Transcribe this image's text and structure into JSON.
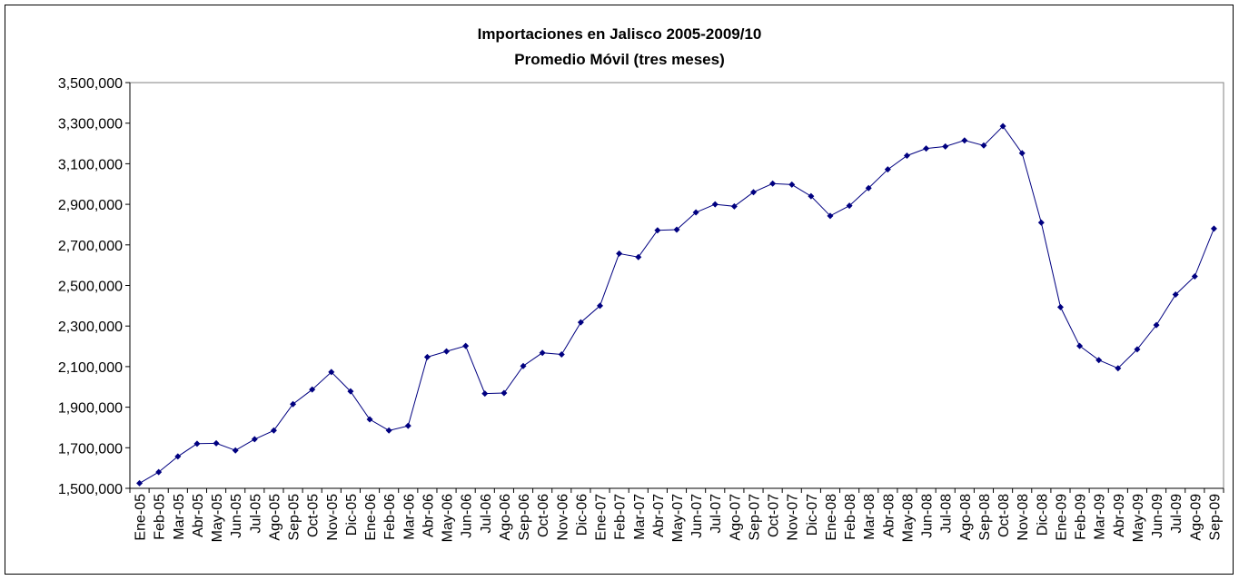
{
  "chart_data": {
    "type": "line",
    "title": "Importaciones en Jalisco 2005-2009/10",
    "subtitle": "Promedio Móvil (tres meses)",
    "categories": [
      "Ene-05",
      "Feb-05",
      "Mar-05",
      "Abr-05",
      "May-05",
      "Jun-05",
      "Jul-05",
      "Ago-05",
      "Sep-05",
      "Oct-05",
      "Nov-05",
      "Dic-05",
      "Ene-06",
      "Feb-06",
      "Mar-06",
      "Abr-06",
      "May-06",
      "Jun-06",
      "Jul-06",
      "Ago-06",
      "Sep-06",
      "Oct-06",
      "Nov-06",
      "Dic-06",
      "Ene-07",
      "Feb-07",
      "Mar-07",
      "Abr-07",
      "May-07",
      "Jun-07",
      "Jul-07",
      "Ago-07",
      "Sep-07",
      "Oct-07",
      "Nov-07",
      "Dic-07",
      "Ene-08",
      "Feb-08",
      "Mar-08",
      "Abr-08",
      "May-08",
      "Jun-08",
      "Jul-08",
      "Ago-08",
      "Sep-08",
      "Oct-08",
      "Nov-08",
      "Dic-08",
      "Ene-09",
      "Feb-09",
      "Mar-09",
      "Abr-09",
      "May-09",
      "Jun-09",
      "Jul-09",
      "Ago-09",
      "Sep-09"
    ],
    "values": [
      1525000,
      1580000,
      1657000,
      1720000,
      1722000,
      1687000,
      1742000,
      1785000,
      1915000,
      1987000,
      2073000,
      1978000,
      1840000,
      1785000,
      1808000,
      2147000,
      2175000,
      2202000,
      1967000,
      1970000,
      2103000,
      2168000,
      2160000,
      2318000,
      2400000,
      2657000,
      2640000,
      2772000,
      2775000,
      2860000,
      2900000,
      2890000,
      2960000,
      3002000,
      2997000,
      2940000,
      2843000,
      2893000,
      2980000,
      3072000,
      3140000,
      3175000,
      3185000,
      3215000,
      3190000,
      3285000,
      3152000,
      2810000,
      2393000,
      2202000,
      2132000,
      2092000,
      2185000,
      2305000,
      2455000,
      2545000,
      2780000
    ],
    "color": "#000080",
    "ylim": [
      1500000,
      3500000
    ],
    "yticks": [
      {
        "value": 1500000,
        "label": "1,500,000"
      },
      {
        "value": 1700000,
        "label": "1,700,000"
      },
      {
        "value": 1900000,
        "label": "1,900,000"
      },
      {
        "value": 2100000,
        "label": "2,100,000"
      },
      {
        "value": 2300000,
        "label": "2,300,000"
      },
      {
        "value": 2500000,
        "label": "2,500,000"
      },
      {
        "value": 2700000,
        "label": "2,700,000"
      },
      {
        "value": 2900000,
        "label": "2,900,000"
      },
      {
        "value": 3100000,
        "label": "3,100,000"
      },
      {
        "value": 3300000,
        "label": "3,300,000"
      },
      {
        "value": 3500000,
        "label": "3,500,000"
      }
    ],
    "grid": false
  }
}
